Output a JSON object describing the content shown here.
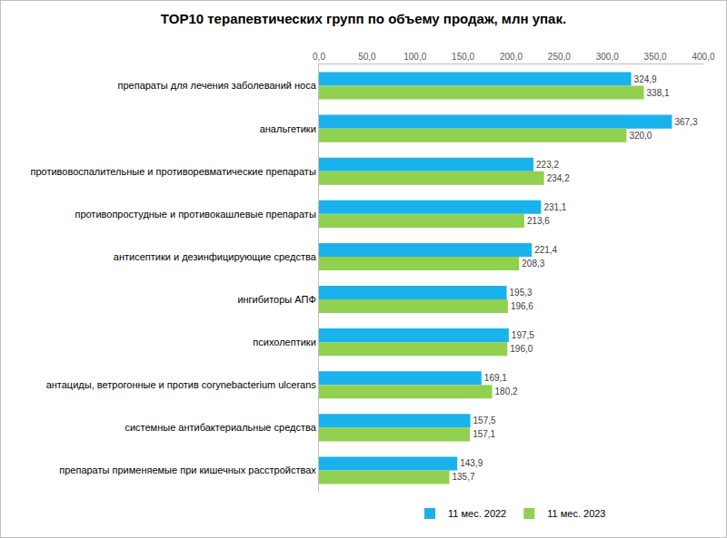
{
  "chart_data": {
    "type": "bar",
    "orientation": "horizontal",
    "title": "TOP10 терапевтических групп по объему продаж, млн упак.",
    "categories": [
      "препараты для лечения заболеваний носа",
      "анальгетики",
      "противовоспалительные и противоревматические препараты",
      "противопростудные и противокашлевые препараты",
      "антисептики и дезинфицирующие средства",
      "ингибиторы АПФ",
      "психолептики",
      "антациды, ветрогонные и против corynebacterium ulcerans",
      "системные антибактериальные средства",
      "препараты применяемые при кишечных расстройствах"
    ],
    "series": [
      {
        "name": "11 мес. 2022",
        "color": "#1ab2ec",
        "values": [
          324.9,
          367.3,
          223.2,
          231.1,
          221.4,
          195.3,
          197.5,
          169.1,
          157.5,
          143.9
        ],
        "value_labels": [
          "324,9",
          "367,3",
          "223,2",
          "231,1",
          "221,4",
          "195,3",
          "197,5",
          "169,1",
          "157,5",
          "143,9"
        ]
      },
      {
        "name": "11 мес. 2023",
        "color": "#92d050",
        "values": [
          338.1,
          320.0,
          234.2,
          213.6,
          208.3,
          196.6,
          196.0,
          180.2,
          157.1,
          135.7
        ],
        "value_labels": [
          "338,1",
          "320,0",
          "234,2",
          "213,6",
          "208,3",
          "196,6",
          "196,0",
          "180,2",
          "157,1",
          "135,7"
        ]
      }
    ],
    "xlim": [
      0,
      400
    ],
    "xticks": [
      {
        "value": 0,
        "label": "0,0"
      },
      {
        "value": 50,
        "label": "50,0"
      },
      {
        "value": 100,
        "label": "100,0"
      },
      {
        "value": 150,
        "label": "150,0"
      },
      {
        "value": 200,
        "label": "200,0"
      },
      {
        "value": 250,
        "label": "250,0"
      },
      {
        "value": 300,
        "label": "300,0"
      },
      {
        "value": 350,
        "label": "350,0"
      },
      {
        "value": 400,
        "label": "400,0"
      }
    ],
    "grid": false,
    "legend": "bottom",
    "data_labels": true
  }
}
